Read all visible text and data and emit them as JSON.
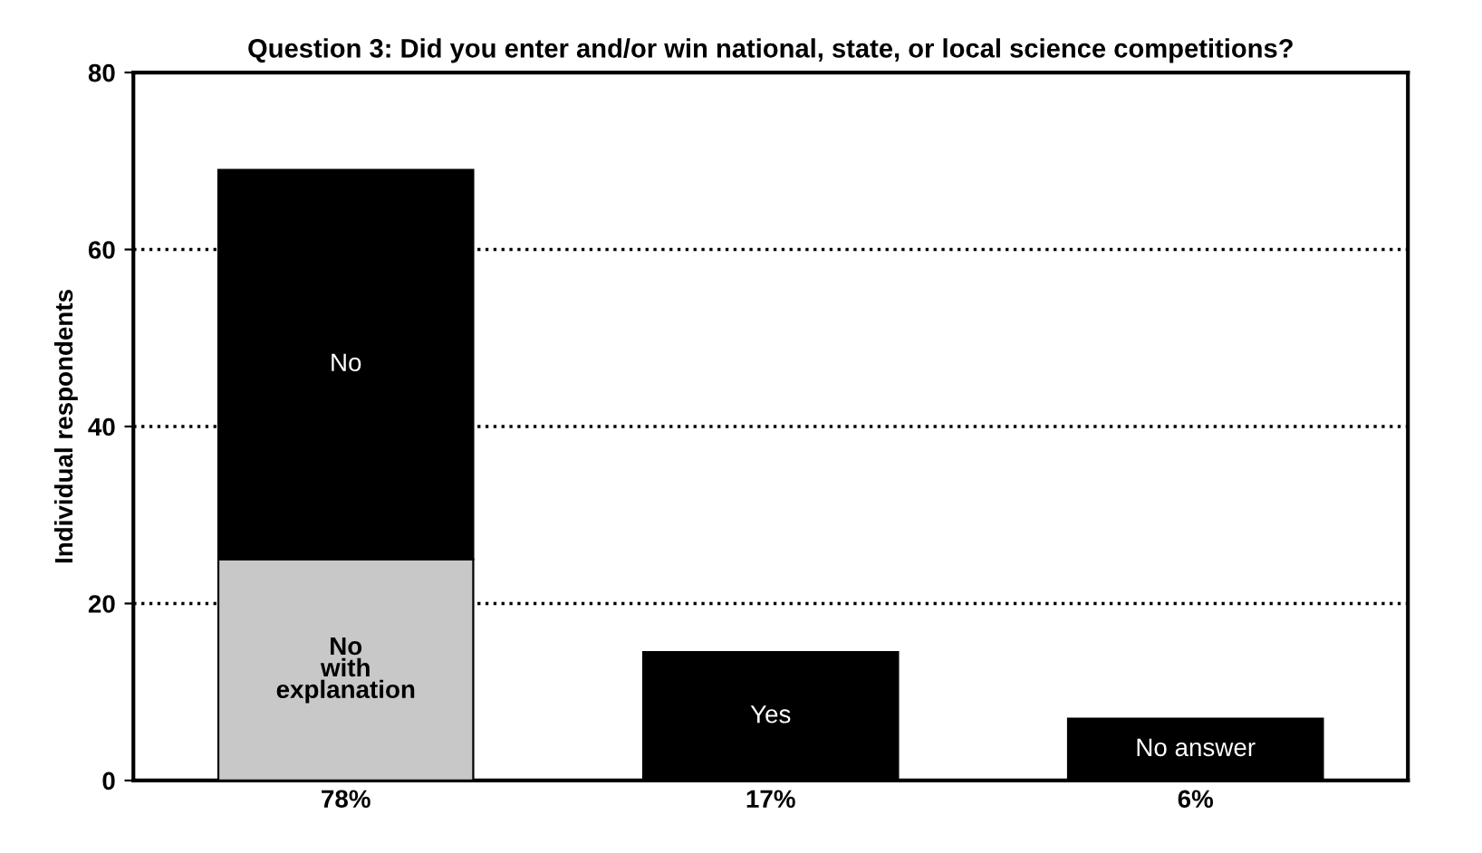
{
  "chart_data": {
    "type": "bar",
    "title": "Question 3: Did you enter and/or win national, state, or local science competitions?",
    "ylabel": "Individual respondents",
    "categories": [
      "78%",
      "17%",
      "6%"
    ],
    "stacked": true,
    "series": [
      {
        "name": "No\nwith\nexplanation",
        "color": "#c8c8c8",
        "values": [
          25,
          null,
          null
        ]
      },
      {
        "name": "No",
        "color": "#000000",
        "values": [
          44,
          null,
          null
        ]
      },
      {
        "name": "Yes",
        "color": "#000000",
        "values": [
          null,
          14.5,
          null
        ]
      },
      {
        "name": "No answer",
        "color": "#000000",
        "values": [
          null,
          null,
          7
        ]
      }
    ],
    "ylim": [
      0,
      80
    ],
    "yticks": [
      0,
      20,
      40,
      60,
      80
    ],
    "grid": "y"
  }
}
